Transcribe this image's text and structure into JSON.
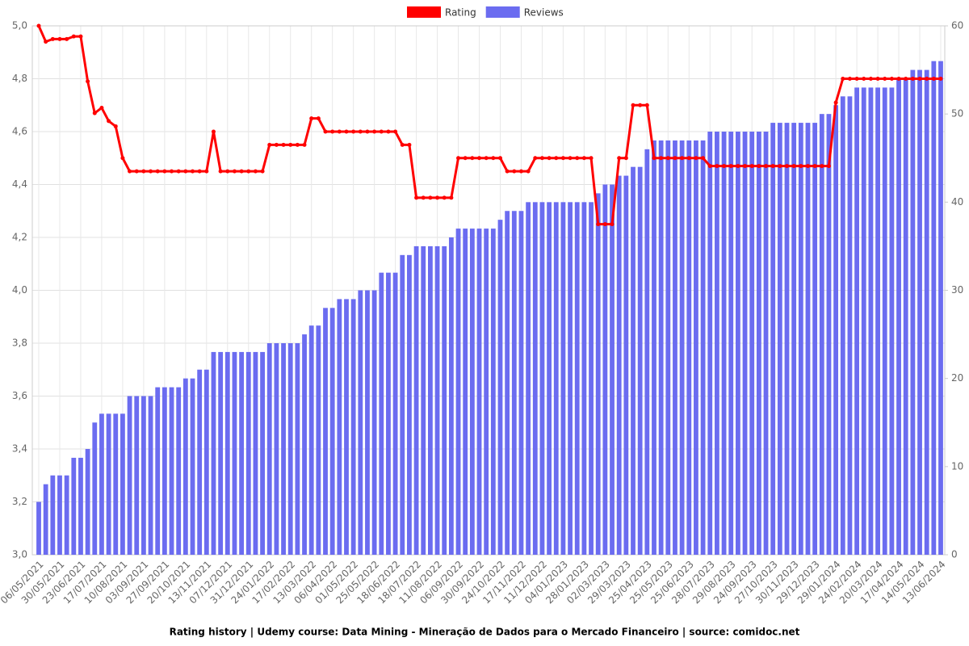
{
  "chart_data": {
    "type": "bar-line",
    "title": "Rating history | Udemy course: Data Mining - Mineração de Dados para o Mercado Financeiro | source: comidoc.net",
    "categories": [
      "06/05/2021",
      null,
      null,
      "30/05/2021",
      null,
      null,
      "23/06/2021",
      null,
      null,
      "17/07/2021",
      null,
      null,
      "10/08/2021",
      null,
      null,
      "03/09/2021",
      null,
      null,
      "27/09/2021",
      null,
      null,
      "20/10/2021",
      null,
      null,
      "13/11/2021",
      null,
      null,
      "07/12/2021",
      null,
      null,
      "31/12/2021",
      null,
      null,
      "24/01/2022",
      null,
      null,
      "17/02/2022",
      null,
      null,
      "13/03/2022",
      null,
      null,
      "06/04/2022",
      null,
      null,
      "01/05/2022",
      null,
      null,
      "25/05/2022",
      null,
      null,
      "18/06/2022",
      null,
      null,
      "18/07/2022",
      null,
      null,
      "11/08/2022",
      null,
      null,
      "06/09/2022",
      null,
      null,
      "30/09/2022",
      null,
      null,
      "24/10/2022",
      null,
      null,
      "17/11/2022",
      null,
      null,
      "11/12/2022",
      null,
      null,
      "04/01/2023",
      null,
      null,
      "28/01/2023",
      null,
      null,
      "02/03/2023",
      null,
      null,
      "29/03/2023",
      null,
      null,
      "25/04/2023",
      null,
      null,
      "25/05/2023",
      null,
      null,
      "25/06/2023",
      null,
      null,
      "28/07/2023",
      null,
      null,
      "29/08/2023",
      null,
      null,
      "24/09/2023",
      null,
      null,
      "27/10/2023",
      null,
      null,
      "30/11/2023",
      null,
      null,
      "29/12/2023",
      null,
      null,
      "29/01/2024",
      null,
      null,
      "24/02/2024",
      null,
      null,
      "20/03/2024",
      null,
      null,
      "17/04/2024",
      null,
      null,
      "14/05/2024",
      null,
      null,
      "13/06/2024"
    ],
    "series": [
      {
        "name": "Rating",
        "type": "line",
        "color": "#ff0000",
        "values": [
          5.0,
          4.94,
          4.95,
          4.95,
          4.95,
          4.96,
          4.96,
          4.79,
          4.67,
          4.69,
          4.64,
          4.62,
          4.5,
          4.45,
          4.45,
          4.45,
          4.45,
          4.45,
          4.45,
          4.45,
          4.45,
          4.45,
          4.45,
          4.45,
          4.45,
          4.6,
          4.45,
          4.45,
          4.45,
          4.45,
          4.45,
          4.45,
          4.45,
          4.55,
          4.55,
          4.55,
          4.55,
          4.55,
          4.55,
          4.65,
          4.65,
          4.6,
          4.6,
          4.6,
          4.6,
          4.6,
          4.6,
          4.6,
          4.6,
          4.6,
          4.6,
          4.6,
          4.55,
          4.55,
          4.35,
          4.35,
          4.35,
          4.35,
          4.35,
          4.35,
          4.5,
          4.5,
          4.5,
          4.5,
          4.5,
          4.5,
          4.5,
          4.45,
          4.45,
          4.45,
          4.45,
          4.5,
          4.5,
          4.5,
          4.5,
          4.5,
          4.5,
          4.5,
          4.5,
          4.5,
          4.25,
          4.25,
          4.25,
          4.5,
          4.5,
          4.7,
          4.7,
          4.7,
          4.5,
          4.5,
          4.5,
          4.5,
          4.5,
          4.5,
          4.5,
          4.5,
          4.47,
          4.47,
          4.47,
          4.47,
          4.47,
          4.47,
          4.47,
          4.47,
          4.47,
          4.47,
          4.47,
          4.47,
          4.47,
          4.47,
          4.47,
          4.47,
          4.47,
          4.47,
          4.71,
          4.8,
          4.8,
          4.8,
          4.8,
          4.8,
          4.8,
          4.8,
          4.8,
          4.8,
          4.8,
          4.8,
          4.8,
          4.8,
          4.8,
          4.8
        ]
      },
      {
        "name": "Reviews",
        "type": "bar",
        "axis": "y2",
        "color": "#6b6cf0",
        "values": [
          6,
          8,
          9,
          9,
          9,
          11,
          11,
          12,
          15,
          16,
          16,
          16,
          16,
          18,
          18,
          18,
          18,
          19,
          19,
          19,
          19,
          20,
          20,
          21,
          21,
          23,
          23,
          23,
          23,
          23,
          23,
          23,
          23,
          24,
          24,
          24,
          24,
          24,
          25,
          26,
          26,
          28,
          28,
          29,
          29,
          29,
          30,
          30,
          30,
          32,
          32,
          32,
          34,
          34,
          35,
          35,
          35,
          35,
          35,
          36,
          37,
          37,
          37,
          37,
          37,
          37,
          38,
          39,
          39,
          39,
          40,
          40,
          40,
          40,
          40,
          40,
          40,
          40,
          40,
          40,
          41,
          42,
          42,
          43,
          43,
          44,
          44,
          46,
          47,
          47,
          47,
          47,
          47,
          47,
          47,
          47,
          48,
          48,
          48,
          48,
          48,
          48,
          48,
          48,
          48,
          49,
          49,
          49,
          49,
          49,
          49,
          49,
          50,
          50,
          51,
          52,
          52,
          53,
          53,
          53,
          53,
          53,
          53,
          54,
          54,
          55,
          55,
          55,
          56,
          56
        ]
      }
    ],
    "ylim": [
      3.0,
      5.0
    ],
    "yticks": [
      {
        "value": 3.0,
        "label": "3,0"
      },
      {
        "value": 3.2,
        "label": "3,2"
      },
      {
        "value": 3.4,
        "label": "3,4"
      },
      {
        "value": 3.6,
        "label": "3,6"
      },
      {
        "value": 3.8,
        "label": "3,8"
      },
      {
        "value": 4.0,
        "label": "4,0"
      },
      {
        "value": 4.2,
        "label": "4,2"
      },
      {
        "value": 4.4,
        "label": "4,4"
      },
      {
        "value": 4.6,
        "label": "4,6"
      },
      {
        "value": 4.8,
        "label": "4,8"
      },
      {
        "value": 5.0,
        "label": "5,0"
      }
    ],
    "y2lim": [
      0,
      60
    ],
    "y2ticks": [
      0,
      10,
      20,
      30,
      40,
      50,
      60
    ],
    "grid": true,
    "legend": "top"
  }
}
